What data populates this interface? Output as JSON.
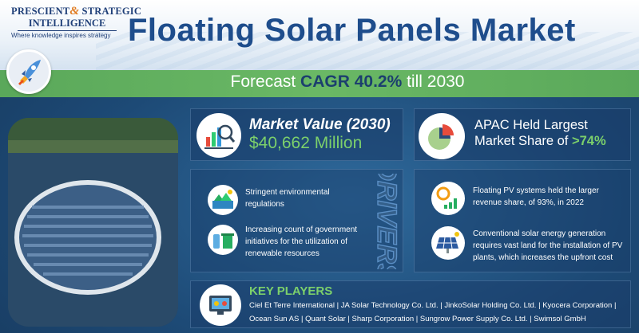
{
  "logo": {
    "line1_a": "PRESCIENT",
    "line1_amp": "&",
    "line1_b": " STRATEGIC",
    "line2": "INTELLIGENCE",
    "tagline": "Where knowledge inspires strategy"
  },
  "title": "Floating Solar Panels Market",
  "forecast": {
    "prefix": "Forecast ",
    "highlight": "CAGR 40.2%",
    "suffix": " till 2030"
  },
  "market_value": {
    "label": "Market Value (2030)",
    "value": "$40,662 Million"
  },
  "apac": {
    "text": "APAC Held Largest Market Share of ",
    "highlight": ">74%"
  },
  "drivers": {
    "heading": "DRIVERS",
    "items": [
      "Stringent environmental regulations",
      "Increasing count of government initiatives for the utilization of renewable resources",
      "Floating PV systems held the larger revenue share, of 93%, in 2022",
      "Conventional solar energy generation requires vast land for the installation of PV plants, which increases the upfront cost"
    ]
  },
  "key_players": {
    "heading": "KEY PLAYERS",
    "line1": "Ciel Et Terre International | JA Solar Technology Co. Ltd. | JinkoSolar Holding Co. Ltd. | Kyocera Corporation |",
    "line2": "Ocean Sun AS | Quant Solar | Sharp Corporation | Sungrow Power Supply Co. Ltd. | Swimsol GmbH"
  },
  "colors": {
    "accent_green": "#7cd06b",
    "title_blue": "#1e4d8c",
    "bar_green": "#5aa85a"
  },
  "icons": [
    "rocket-icon",
    "market-chart-icon",
    "pie-chart-icon",
    "nature-regulation-icon",
    "recycle-bin-icon",
    "growth-chart-icon",
    "solar-panel-icon",
    "players-screen-icon"
  ]
}
